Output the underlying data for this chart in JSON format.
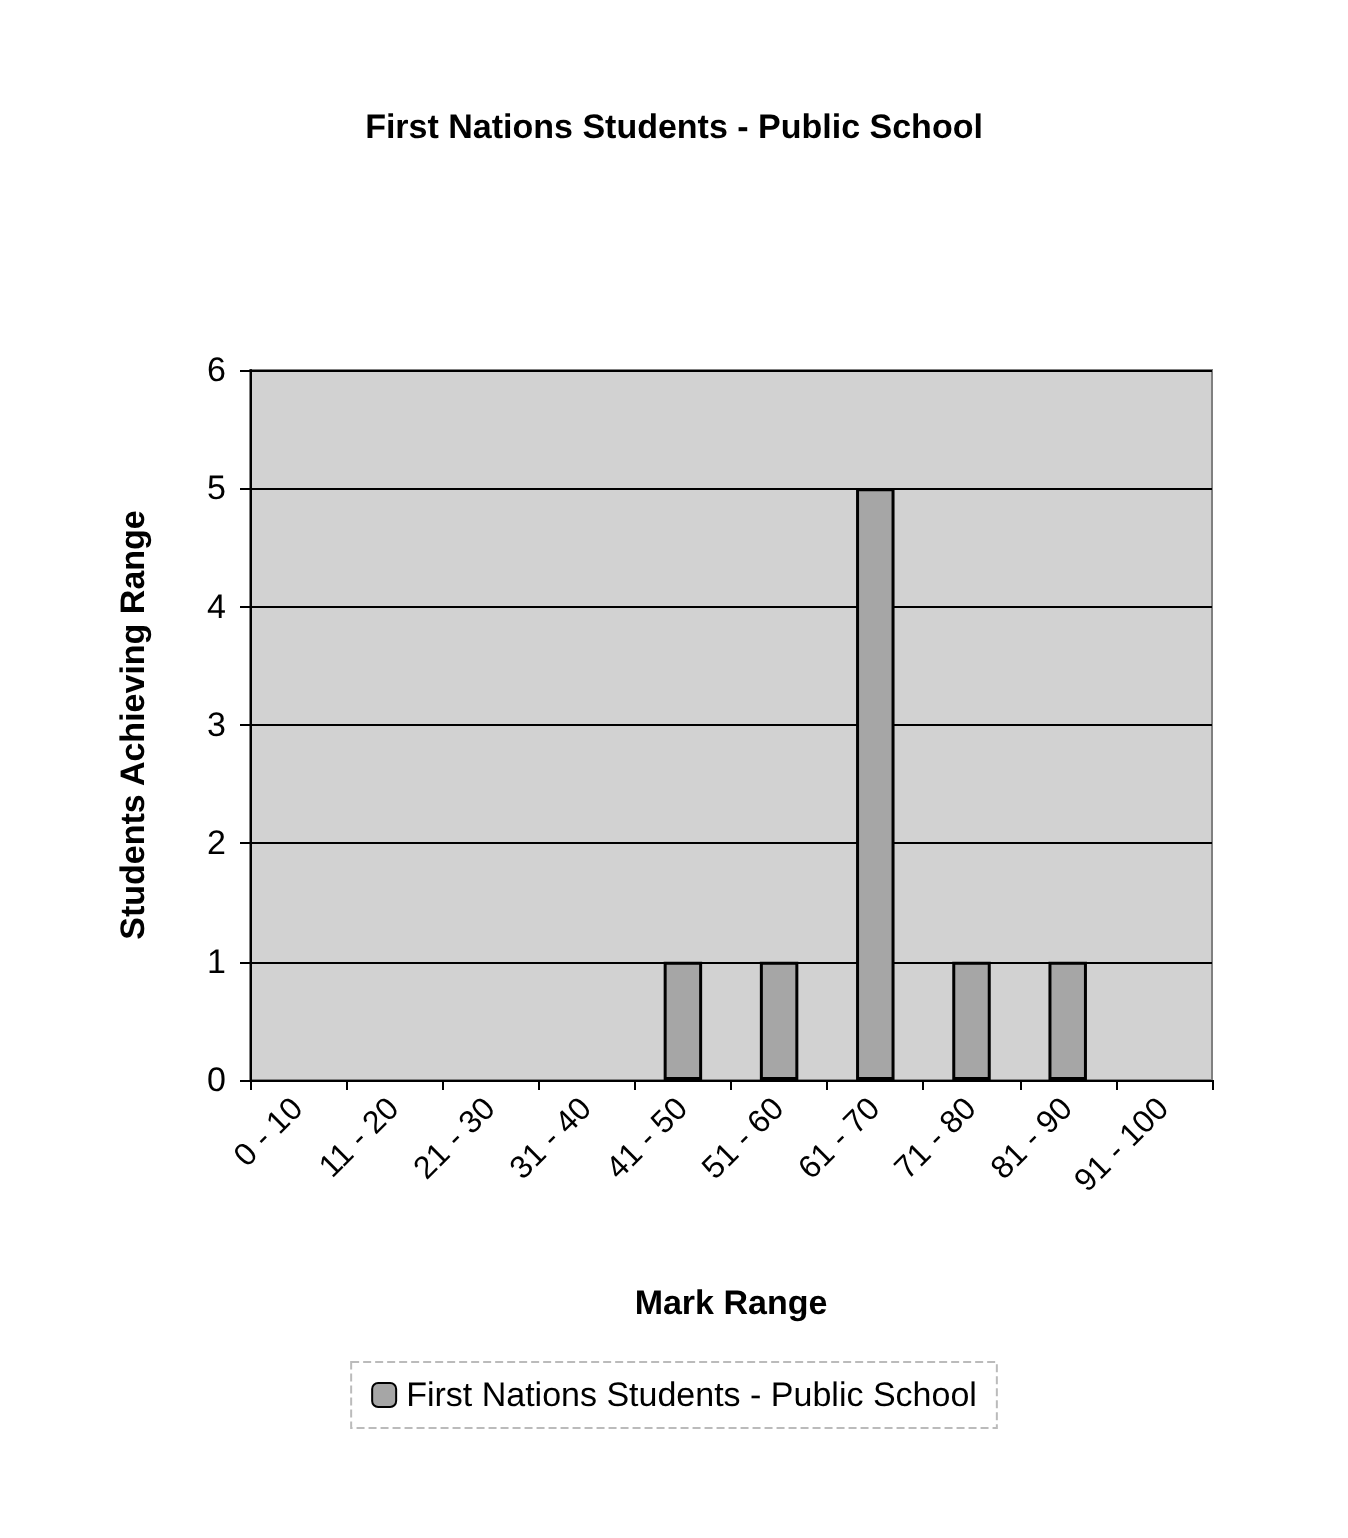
{
  "chart_data": {
    "type": "bar",
    "title": "First Nations Students - Public School",
    "xlabel": "Mark Range",
    "ylabel": "Students Achieving Range",
    "categories": [
      "0 - 10",
      "11 - 20",
      "21 - 30",
      "31 - 40",
      "41 - 50",
      "51 - 60",
      "61 - 70",
      "71 - 80",
      "81 - 90",
      "91 - 100"
    ],
    "series": [
      {
        "name": "First Nations Students - Public School",
        "color": "#a6a6a6",
        "values": [
          0,
          0,
          0,
          0,
          1,
          1,
          5,
          1,
          1,
          0
        ]
      }
    ],
    "ylim": [
      0,
      6
    ],
    "yticks": [
      0,
      1,
      2,
      3,
      4,
      5,
      6
    ],
    "grid": "y",
    "legend": "bottom"
  }
}
